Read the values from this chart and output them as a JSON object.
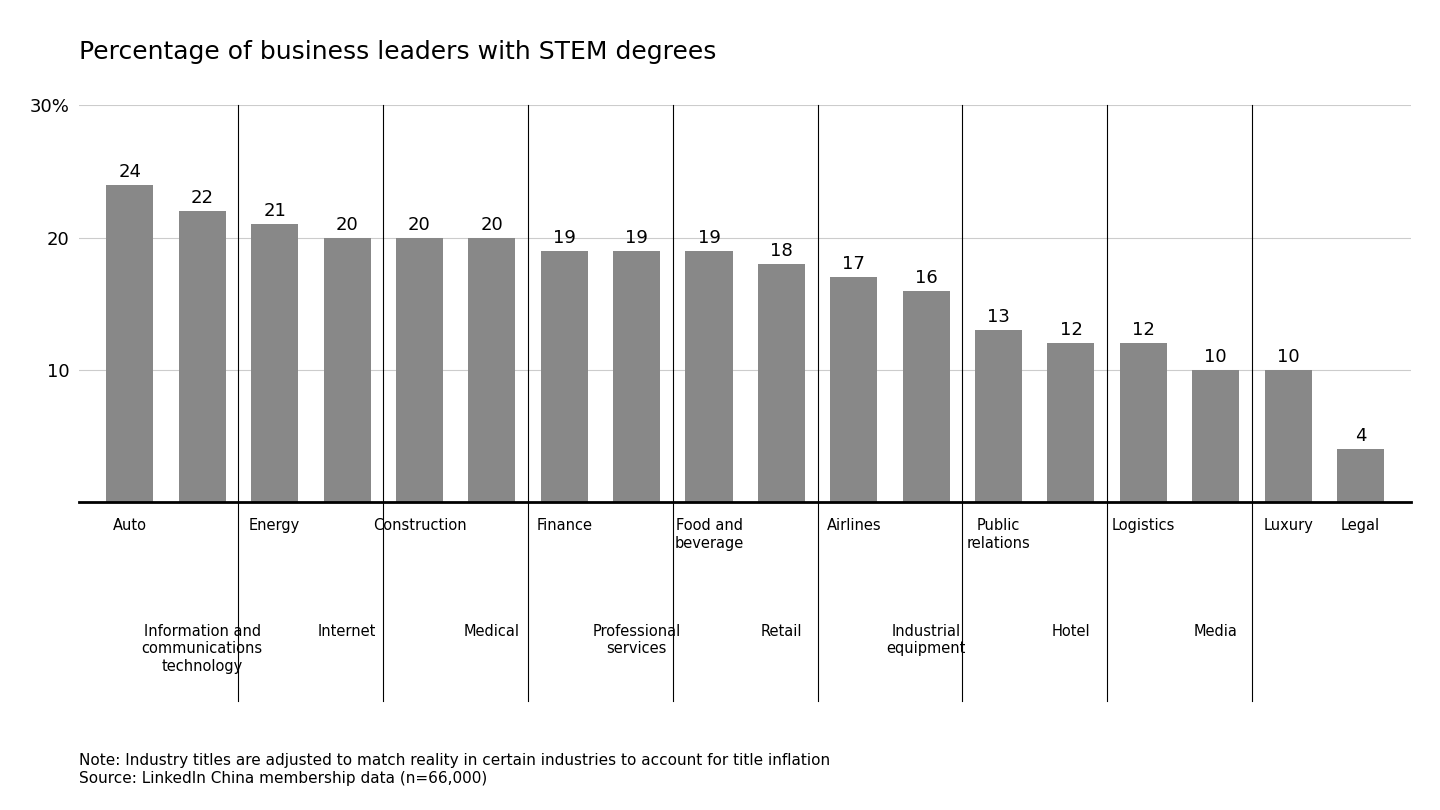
{
  "title": "Percentage of business leaders with STEM degrees",
  "values": [
    24,
    22,
    21,
    20,
    20,
    20,
    19,
    19,
    19,
    18,
    17,
    16,
    13,
    12,
    12,
    10,
    10,
    4
  ],
  "bar_color": "#888888",
  "ylim": [
    0,
    30
  ],
  "yticks": [
    10,
    20,
    30
  ],
  "ytick_labels": [
    "10",
    "20",
    "30%"
  ],
  "top_row_indices": [
    0,
    2,
    4,
    6,
    8,
    10,
    12,
    14,
    16,
    17
  ],
  "bottom_row_indices": [
    1,
    3,
    5,
    7,
    9,
    11,
    13,
    15
  ],
  "top_labels": [
    "Auto",
    "Energy",
    "Construction",
    "Finance",
    "Food and\nbeverage",
    "Airlines",
    "Public\nrelations",
    "Logistics",
    "Luxury",
    "Legal"
  ],
  "bottom_labels": [
    "Information and\ncommunications\ntechnology",
    "Internet",
    "Medical",
    "Professional\nservices",
    "Retail",
    "Industrial\nequipment",
    "Hotel",
    "Media"
  ],
  "separator_positions": [
    1.5,
    3.5,
    5.5,
    7.5,
    9.5,
    11.5,
    13.5,
    15.5
  ],
  "note": "Note: Industry titles are adjusted to match reality in certain industries to account for title inflation\nSource: LinkedIn China membership data (n=66,000)",
  "title_fontsize": 18,
  "label_fontsize": 13,
  "note_fontsize": 11,
  "bar_label_fontsize": 13,
  "tick_label_fontsize": 13
}
